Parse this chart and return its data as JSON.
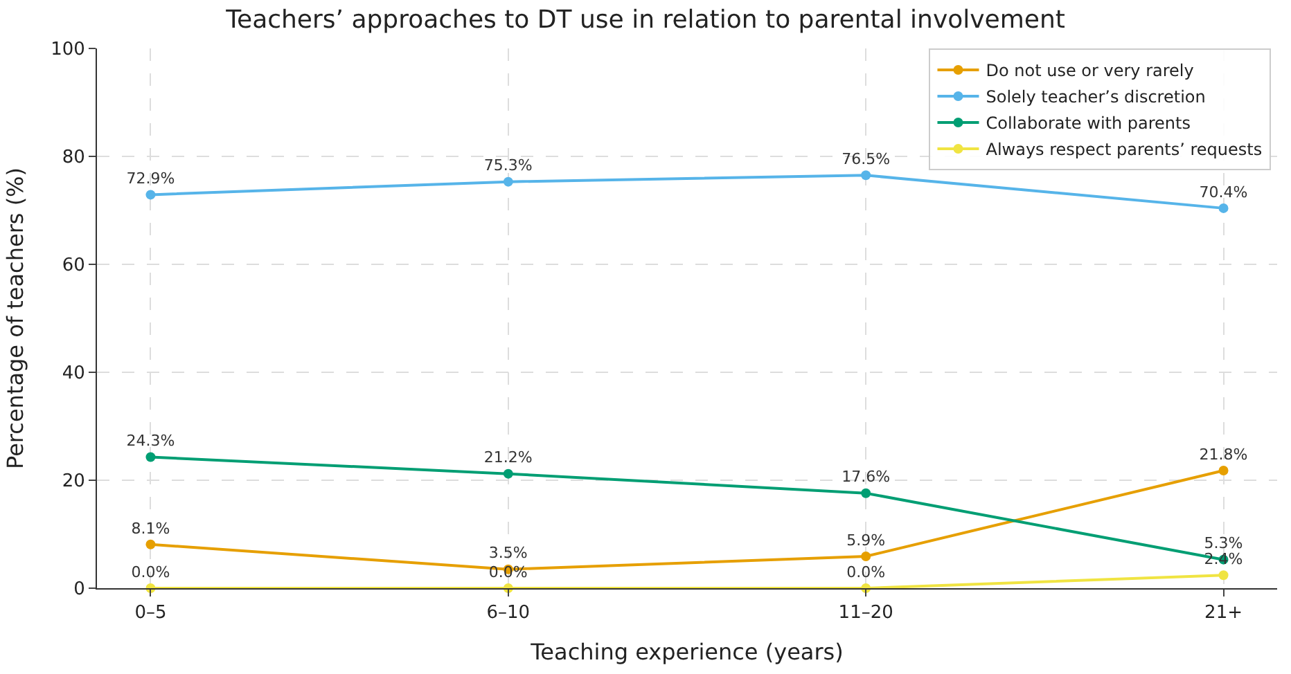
{
  "chart_data": {
    "type": "line",
    "title": "Teachers’ approaches to DT use in relation to parental involvement",
    "xlabel": "Teaching experience (years)",
    "ylabel": "Percentage of teachers (%)",
    "categories": [
      "0–5",
      "6–10",
      "11–20",
      "21+"
    ],
    "series": [
      {
        "name": "Do not use or very rarely",
        "color": "#e69f00",
        "values": [
          8.1,
          3.5,
          5.9,
          21.8
        ],
        "value_labels": [
          "8.1%",
          "3.5%",
          "5.9%",
          "21.8%"
        ]
      },
      {
        "name": "Solely teacher’s discretion",
        "color": "#56b4e9",
        "values": [
          72.9,
          75.3,
          76.5,
          70.4
        ],
        "value_labels": [
          "72.9%",
          "75.3%",
          "76.5%",
          "70.4%"
        ]
      },
      {
        "name": "Collaborate with parents",
        "color": "#009e73",
        "values": [
          24.3,
          21.2,
          17.6,
          5.3
        ],
        "value_labels": [
          "24.3%",
          "21.2%",
          "17.6%",
          "5.3%"
        ]
      },
      {
        "name": "Always respect parents’ requests",
        "color": "#f0e442",
        "values": [
          0.0,
          0.0,
          0.0,
          2.4
        ],
        "value_labels": [
          "0.0%",
          "0.0%",
          "0.0%",
          "2.4%"
        ]
      }
    ],
    "ylim": [
      0,
      100
    ],
    "yticks": [
      0,
      20,
      40,
      60,
      80,
      100
    ],
    "grid": true,
    "legend": "top right",
    "marker": "circle",
    "line_style": "solid"
  }
}
